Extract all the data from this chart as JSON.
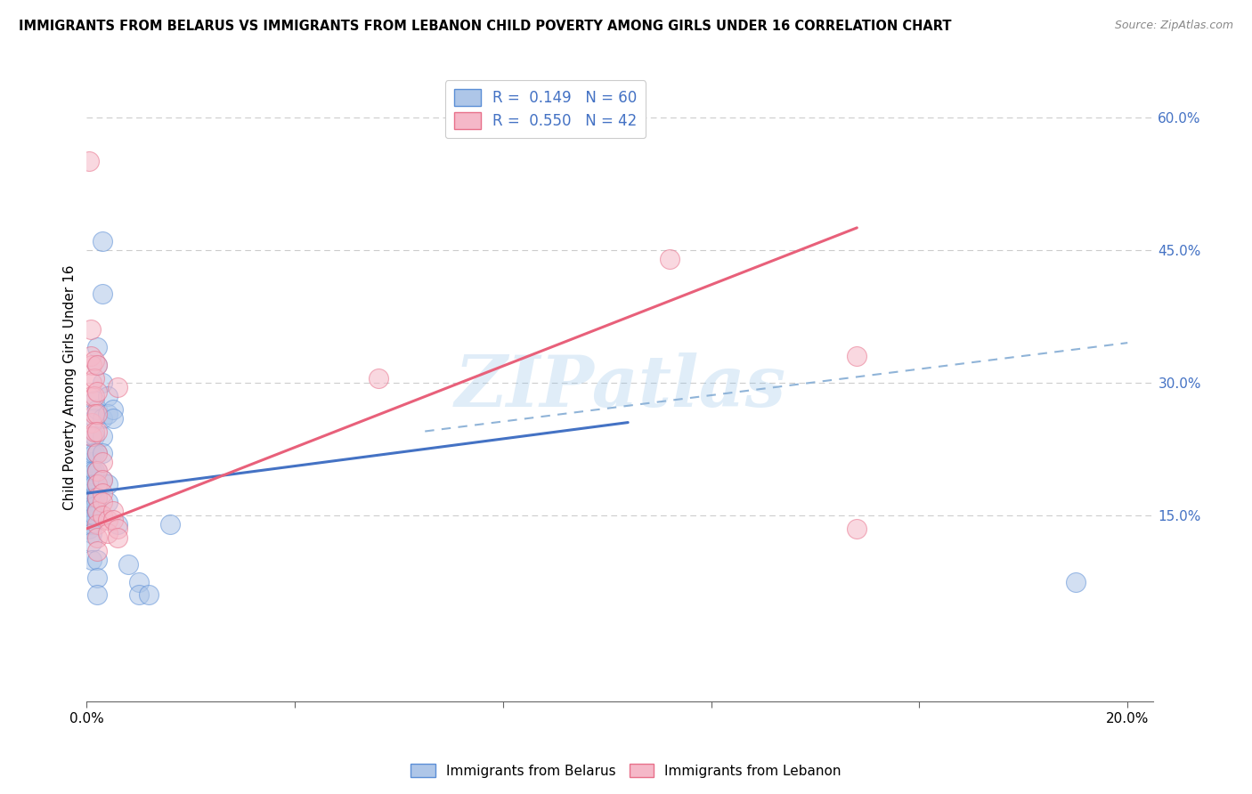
{
  "title": "IMMIGRANTS FROM BELARUS VS IMMIGRANTS FROM LEBANON CHILD POVERTY AMONG GIRLS UNDER 16 CORRELATION CHART",
  "source": "Source: ZipAtlas.com",
  "ylabel": "Child Poverty Among Girls Under 16",
  "xlim": [
    0.0,
    0.205
  ],
  "ylim": [
    -0.06,
    0.65
  ],
  "xticks": [
    0.0,
    0.04,
    0.08,
    0.12,
    0.16,
    0.2
  ],
  "ytick_rights": [
    0.15,
    0.3,
    0.45,
    0.6
  ],
  "ytick_labels_right": [
    "15.0%",
    "30.0%",
    "45.0%",
    "60.0%"
  ],
  "belarus_color": "#aec6e8",
  "lebanon_color": "#f5b8c8",
  "belarus_edge": "#5b8ed6",
  "lebanon_edge": "#e8708a",
  "belarus_line_color": "#4472c4",
  "lebanon_line_color": "#e8607a",
  "dashed_line_color": "#90b4d8",
  "watermark": "ZIPatlas",
  "belarus_scatter": [
    [
      0.0005,
      0.17
    ],
    [
      0.0005,
      0.155
    ],
    [
      0.0005,
      0.145
    ],
    [
      0.0005,
      0.135
    ],
    [
      0.0008,
      0.21
    ],
    [
      0.0008,
      0.195
    ],
    [
      0.0008,
      0.175
    ],
    [
      0.0008,
      0.16
    ],
    [
      0.001,
      0.24
    ],
    [
      0.001,
      0.22
    ],
    [
      0.001,
      0.2
    ],
    [
      0.001,
      0.185
    ],
    [
      0.001,
      0.17
    ],
    [
      0.001,
      0.16
    ],
    [
      0.001,
      0.15
    ],
    [
      0.001,
      0.14
    ],
    [
      0.001,
      0.13
    ],
    [
      0.001,
      0.12
    ],
    [
      0.001,
      0.1
    ],
    [
      0.0015,
      0.28
    ],
    [
      0.0015,
      0.26
    ],
    [
      0.0015,
      0.24
    ],
    [
      0.0015,
      0.22
    ],
    [
      0.0015,
      0.2
    ],
    [
      0.0015,
      0.185
    ],
    [
      0.0015,
      0.17
    ],
    [
      0.0015,
      0.16
    ],
    [
      0.0015,
      0.15
    ],
    [
      0.002,
      0.34
    ],
    [
      0.002,
      0.32
    ],
    [
      0.002,
      0.27
    ],
    [
      0.002,
      0.22
    ],
    [
      0.002,
      0.2
    ],
    [
      0.002,
      0.185
    ],
    [
      0.002,
      0.17
    ],
    [
      0.002,
      0.155
    ],
    [
      0.002,
      0.1
    ],
    [
      0.002,
      0.08
    ],
    [
      0.002,
      0.06
    ],
    [
      0.003,
      0.46
    ],
    [
      0.003,
      0.4
    ],
    [
      0.003,
      0.3
    ],
    [
      0.003,
      0.26
    ],
    [
      0.003,
      0.24
    ],
    [
      0.003,
      0.22
    ],
    [
      0.003,
      0.19
    ],
    [
      0.004,
      0.285
    ],
    [
      0.004,
      0.265
    ],
    [
      0.004,
      0.185
    ],
    [
      0.004,
      0.165
    ],
    [
      0.005,
      0.27
    ],
    [
      0.005,
      0.26
    ],
    [
      0.006,
      0.14
    ],
    [
      0.008,
      0.095
    ],
    [
      0.01,
      0.075
    ],
    [
      0.01,
      0.06
    ],
    [
      0.012,
      0.06
    ],
    [
      0.016,
      0.14
    ],
    [
      0.19,
      0.075
    ]
  ],
  "lebanon_scatter": [
    [
      0.0005,
      0.55
    ],
    [
      0.0008,
      0.36
    ],
    [
      0.0008,
      0.33
    ],
    [
      0.001,
      0.32
    ],
    [
      0.001,
      0.3
    ],
    [
      0.001,
      0.285
    ],
    [
      0.001,
      0.255
    ],
    [
      0.001,
      0.24
    ],
    [
      0.0015,
      0.325
    ],
    [
      0.0015,
      0.305
    ],
    [
      0.0015,
      0.285
    ],
    [
      0.0015,
      0.265
    ],
    [
      0.0015,
      0.245
    ],
    [
      0.002,
      0.32
    ],
    [
      0.002,
      0.29
    ],
    [
      0.002,
      0.265
    ],
    [
      0.002,
      0.245
    ],
    [
      0.002,
      0.22
    ],
    [
      0.002,
      0.2
    ],
    [
      0.002,
      0.185
    ],
    [
      0.002,
      0.17
    ],
    [
      0.002,
      0.155
    ],
    [
      0.002,
      0.14
    ],
    [
      0.002,
      0.125
    ],
    [
      0.002,
      0.11
    ],
    [
      0.003,
      0.21
    ],
    [
      0.003,
      0.19
    ],
    [
      0.003,
      0.175
    ],
    [
      0.003,
      0.165
    ],
    [
      0.003,
      0.15
    ],
    [
      0.004,
      0.145
    ],
    [
      0.004,
      0.13
    ],
    [
      0.005,
      0.155
    ],
    [
      0.005,
      0.145
    ],
    [
      0.006,
      0.295
    ],
    [
      0.006,
      0.135
    ],
    [
      0.006,
      0.125
    ],
    [
      0.056,
      0.305
    ],
    [
      0.112,
      0.44
    ],
    [
      0.148,
      0.33
    ],
    [
      0.148,
      0.135
    ]
  ],
  "belarus_trendline": [
    [
      0.0,
      0.175
    ],
    [
      0.104,
      0.255
    ]
  ],
  "lebanon_trendline": [
    [
      0.0,
      0.135
    ],
    [
      0.148,
      0.475
    ]
  ],
  "dashed_trendline": [
    [
      0.065,
      0.245
    ],
    [
      0.2,
      0.345
    ]
  ]
}
